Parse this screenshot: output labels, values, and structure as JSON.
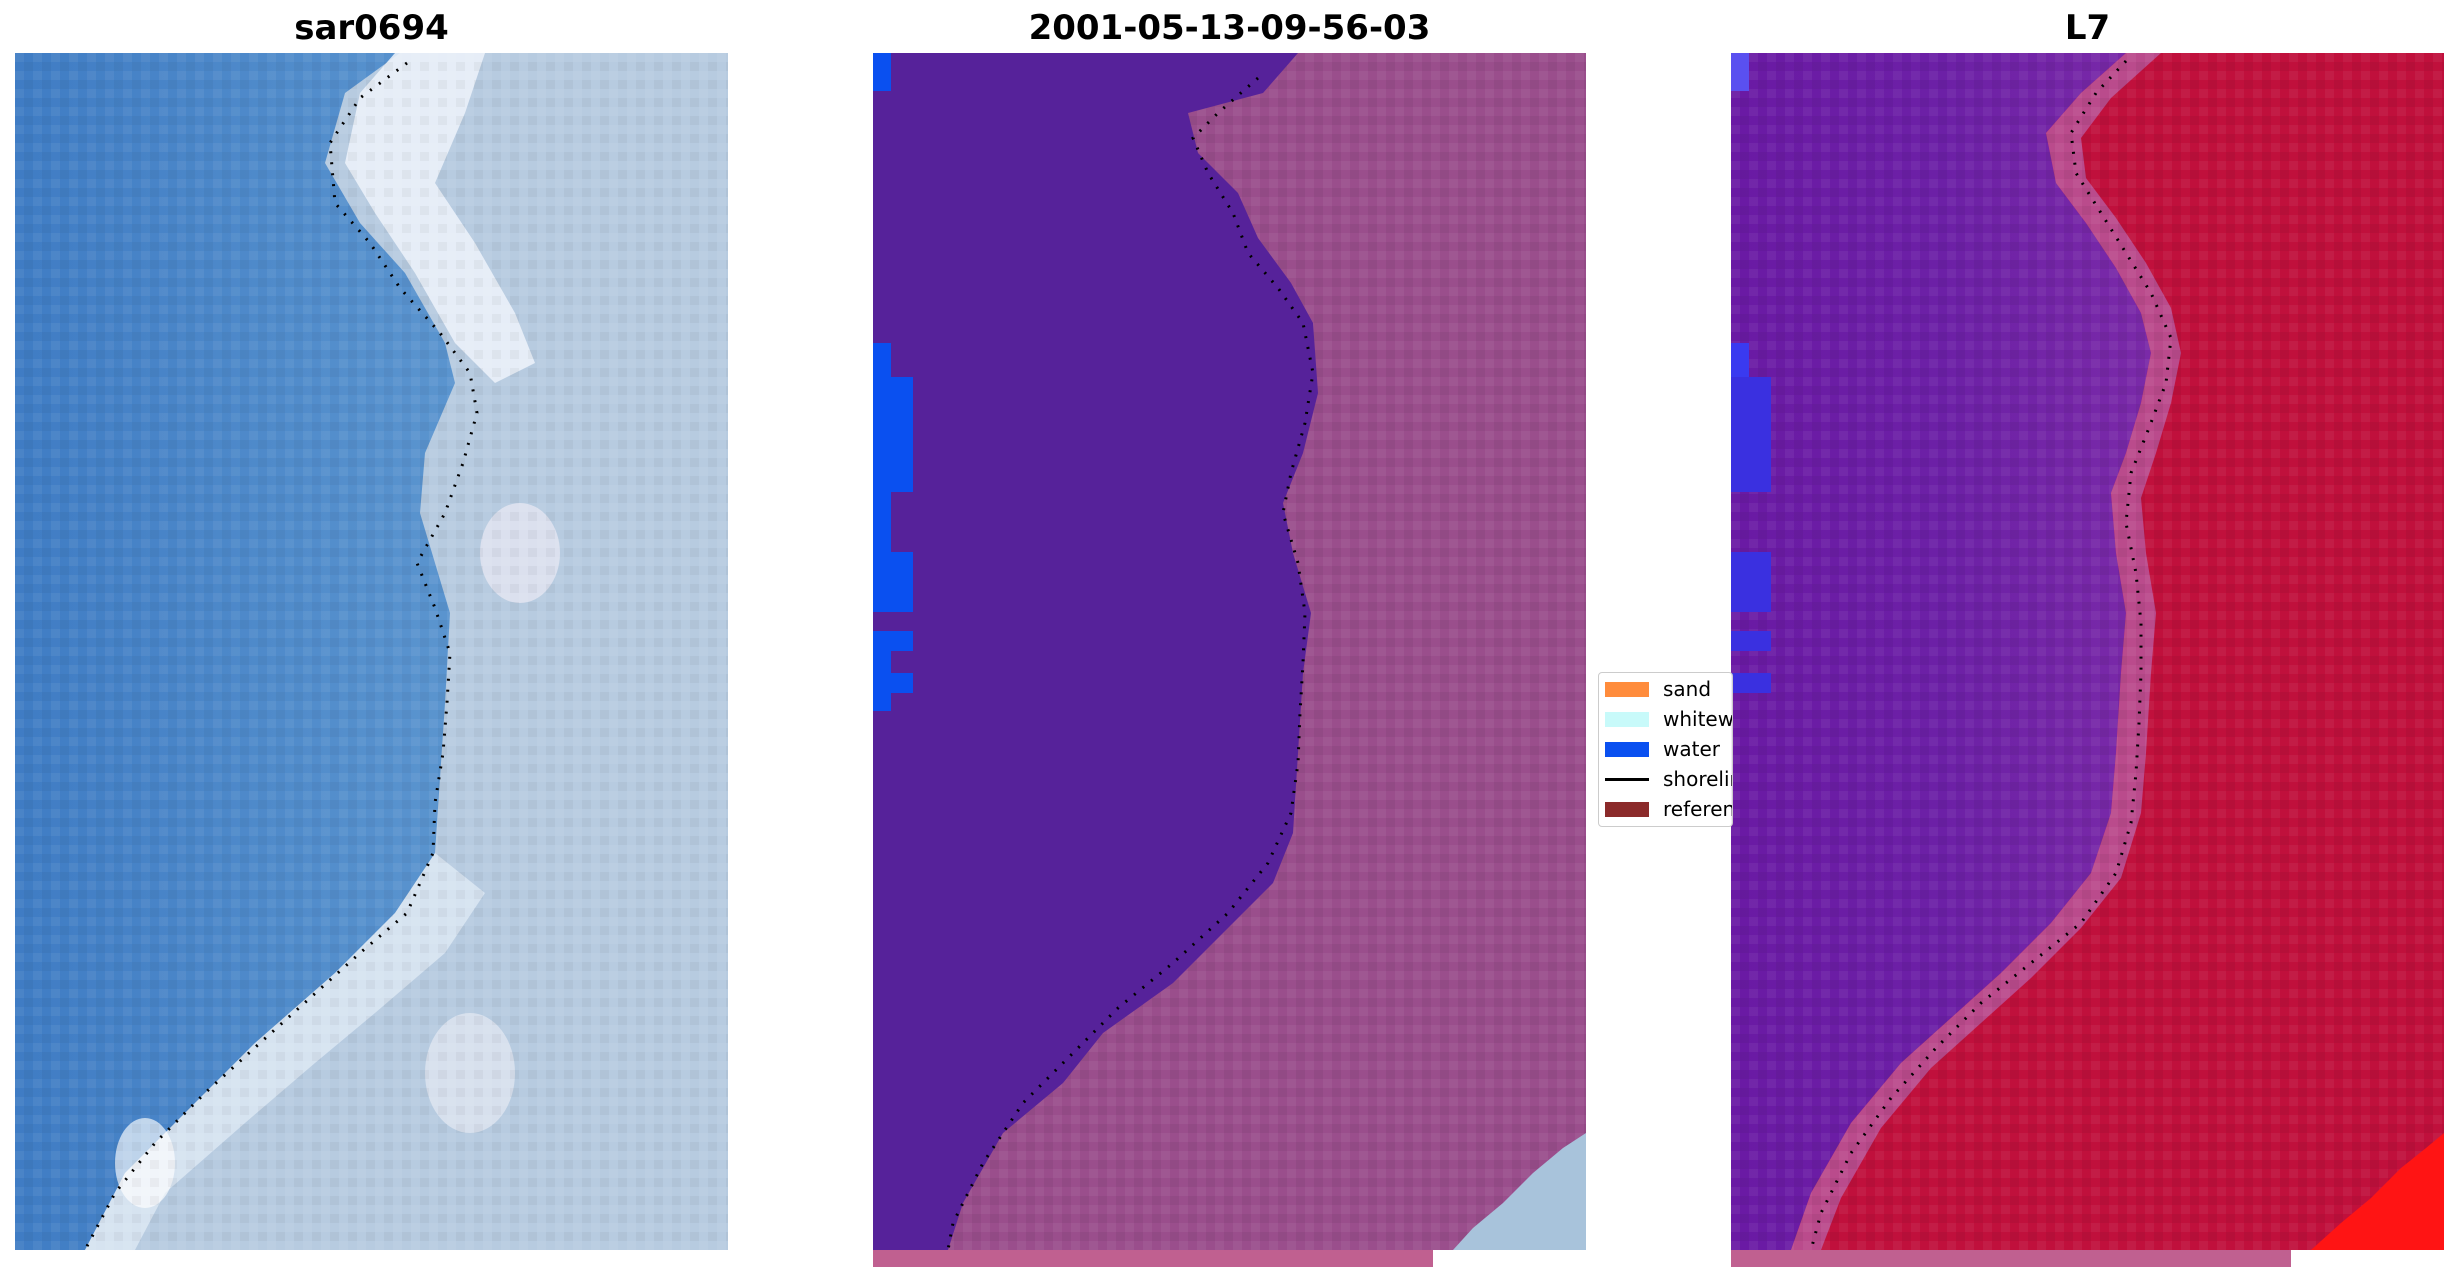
{
  "panels": [
    {
      "title": "sar0694"
    },
    {
      "title": "2001-05-13-09-56-03"
    },
    {
      "title": "L7"
    }
  ],
  "legend": {
    "items": [
      {
        "label": "sand",
        "color": "#ff8c3c",
        "kind": "patch"
      },
      {
        "label": "whitewater",
        "color": "#c8fafa",
        "kind": "patch"
      },
      {
        "label": "water",
        "color": "#0a50f0",
        "kind": "patch"
      },
      {
        "label": "shoreline",
        "color": "#000000",
        "kind": "line"
      },
      {
        "label": "reference",
        "color": "#8b2a2a",
        "kind": "patch"
      }
    ]
  },
  "colors": {
    "rgb_water": "#4a86c8",
    "rgb_land": "#b4c8dc",
    "rgb_whitewater": "#eef4fa",
    "class_water_fill": "#56229a",
    "class_land": "#9a4e8c",
    "class_water_px": "#0a50f0",
    "mndwi_water": "#6a1aa4",
    "mndwi_land": "#c0103c",
    "strip": "#c06090"
  }
}
